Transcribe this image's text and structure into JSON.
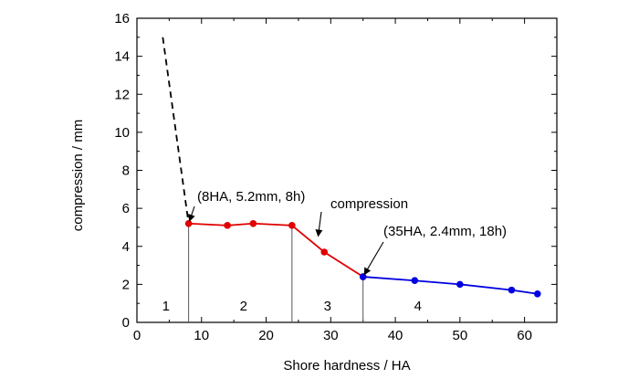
{
  "chart_data": {
    "type": "line",
    "xlabel": "Shore hardness / HA",
    "ylabel": "compression / mm",
    "xlim": [
      0,
      65
    ],
    "ylim": [
      0,
      16
    ],
    "xticks": [
      0,
      10,
      20,
      30,
      40,
      50,
      60
    ],
    "yticks": [
      0,
      2,
      4,
      6,
      8,
      10,
      12,
      14,
      16
    ],
    "grid": false,
    "series": [
      {
        "style": "dashed",
        "color": "#000000",
        "markers": false,
        "points": [
          [
            4,
            15
          ],
          [
            8,
            5.2
          ]
        ]
      },
      {
        "style": "solid",
        "color": "#e00000",
        "markers": true,
        "points": [
          [
            8,
            5.2
          ],
          [
            14,
            5.1
          ],
          [
            18,
            5.2
          ],
          [
            24,
            5.1
          ],
          [
            29,
            3.7
          ],
          [
            35,
            2.4
          ]
        ]
      },
      {
        "style": "solid",
        "color": "#0000e0",
        "markers": true,
        "points": [
          [
            35,
            2.4
          ],
          [
            43,
            2.2
          ],
          [
            50,
            2.0
          ],
          [
            58,
            1.7
          ],
          [
            62,
            1.5
          ]
        ]
      }
    ],
    "dividers": [
      {
        "x": 8,
        "y": 5.2
      },
      {
        "x": 24,
        "y": 5.1
      },
      {
        "x": 35,
        "y": 2.4
      }
    ],
    "regions": [
      {
        "label": "1",
        "x": 4.5
      },
      {
        "label": "2",
        "x": 16.5
      },
      {
        "label": "3",
        "x": 29.5
      },
      {
        "label": "4",
        "x": 43.5
      }
    ],
    "annotations": [
      {
        "text": "(8HA, 5.2mm, 8h)",
        "points_to": [
          8,
          5.2
        ]
      },
      {
        "text": "compression",
        "points_to": [
          28,
          4.4
        ]
      },
      {
        "text": "(35HA, 2.4mm, 18h)",
        "points_to": [
          35,
          2.4
        ]
      }
    ]
  }
}
